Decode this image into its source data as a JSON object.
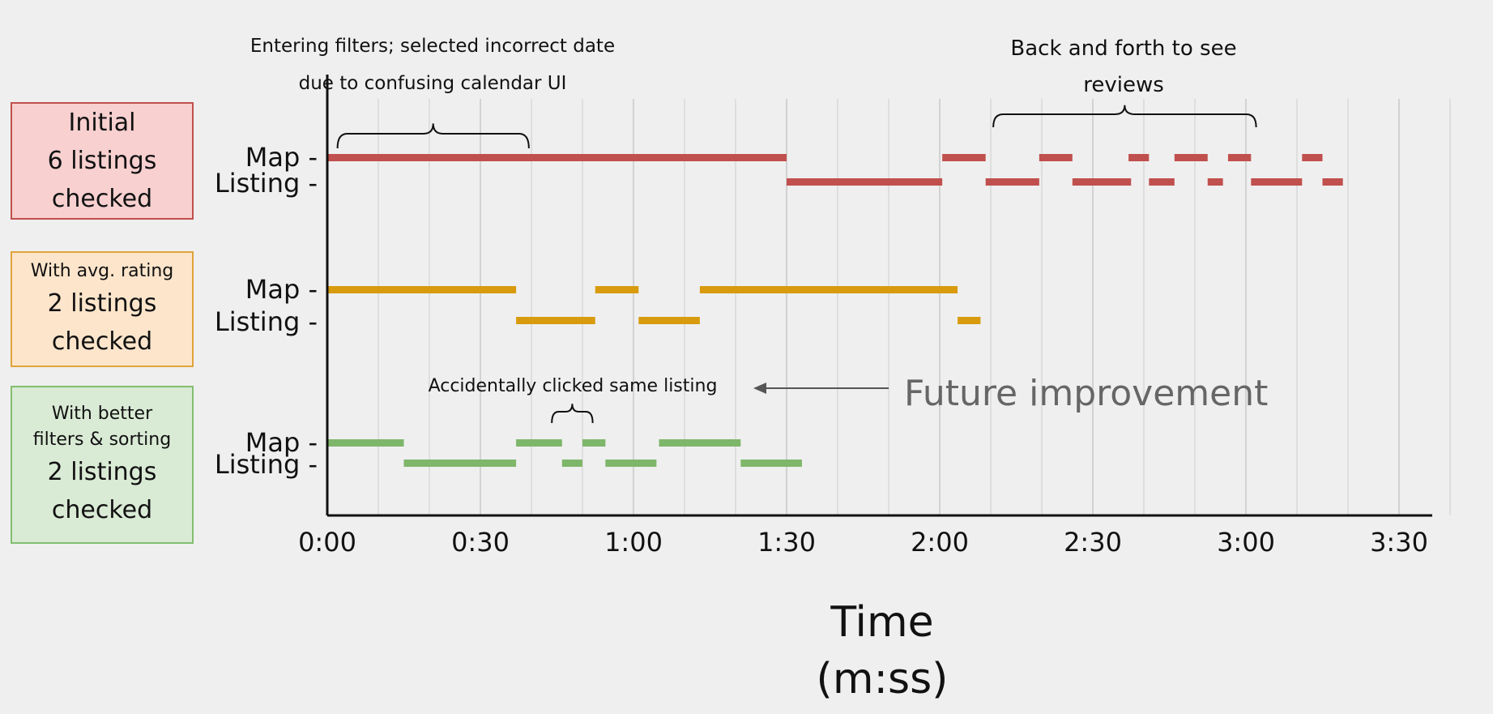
{
  "chart_data": {
    "type": "timeline",
    "xlabel": "Time",
    "xlabel_unit": "(m:ss)",
    "xlim": [
      0,
      220
    ],
    "x_ticks": [
      {
        "value": 0,
        "label": "0:00"
      },
      {
        "value": 30,
        "label": "0:30"
      },
      {
        "value": 60,
        "label": "1:00"
      },
      {
        "value": 90,
        "label": "1:30"
      },
      {
        "value": 120,
        "label": "2:00"
      },
      {
        "value": 150,
        "label": "2:30"
      },
      {
        "value": 180,
        "label": "3:00"
      },
      {
        "value": 210,
        "label": "3:30"
      }
    ],
    "row_labels": [
      "Map -",
      "Listing -"
    ],
    "groups": [
      {
        "line1": "Initial",
        "line2": "6 listings",
        "line3": "checked",
        "color": "#c0504d",
        "box_fill": "#f7d0cf",
        "box_border": "#c0504d",
        "map": [
          [
            0,
            90
          ],
          [
            120.5,
            129
          ],
          [
            139.5,
            146
          ],
          [
            157,
            161
          ],
          [
            166,
            172.5
          ],
          [
            176.5,
            181
          ],
          [
            191,
            195
          ]
        ],
        "listing": [
          [
            90,
            120.5
          ],
          [
            129,
            139.5
          ],
          [
            146,
            157.5
          ],
          [
            161,
            166
          ],
          [
            172.5,
            175.5
          ],
          [
            181,
            191
          ],
          [
            195,
            199
          ]
        ]
      },
      {
        "line1": "With avg. rating",
        "line2": "2 listings",
        "line3": "checked",
        "color": "#d89b0e",
        "box_fill": "#fde5cb",
        "box_border": "#e0a43a",
        "map": [
          [
            0,
            37
          ],
          [
            52.5,
            61
          ],
          [
            73,
            123.5
          ]
        ],
        "listing": [
          [
            37,
            52.5
          ],
          [
            61,
            73
          ],
          [
            123.5,
            128
          ]
        ]
      },
      {
        "line1": "With better",
        "line1b": "filters & sorting",
        "line2": "2 listings",
        "line3": "checked",
        "color": "#7eb66a",
        "box_fill": "#d9ead5",
        "box_border": "#82bf70",
        "map": [
          [
            0,
            15
          ],
          [
            37,
            46
          ],
          [
            50,
            54.5
          ],
          [
            65,
            81
          ]
        ],
        "listing": [
          [
            15,
            37
          ],
          [
            46,
            50
          ],
          [
            54.5,
            64.5
          ],
          [
            81,
            93
          ]
        ]
      }
    ],
    "annotations": [
      {
        "line1": "Entering filters; selected incorrect date",
        "line2": "due to confusing calendar UI",
        "start": 2,
        "end": 39.5
      },
      {
        "line1": "Back and forth to see",
        "line2": "reviews",
        "start": 130.5,
        "end": 182
      },
      {
        "line1": "Accidentally clicked same listing",
        "start": 44,
        "end": 52
      }
    ],
    "callout": "Future improvement"
  }
}
